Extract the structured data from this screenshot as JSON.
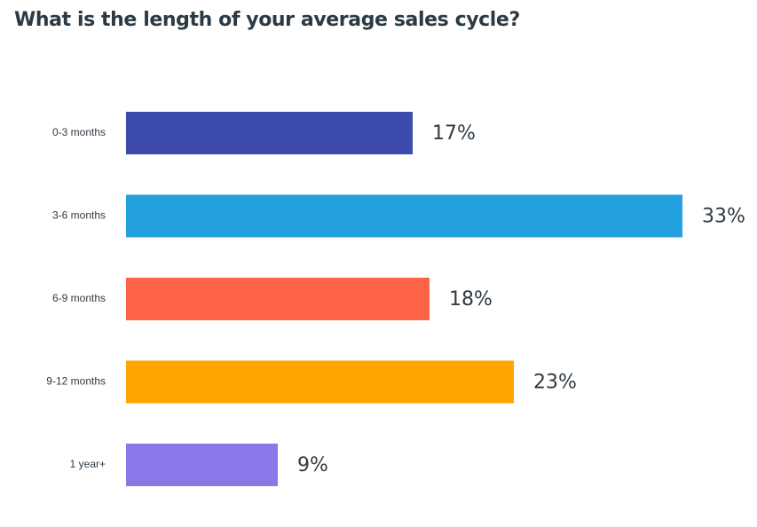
{
  "chart_data": {
    "type": "bar",
    "orientation": "horizontal",
    "title": "What is the length of your average sales cycle?",
    "categories": [
      "0-3 months",
      "3-6 months",
      "6-9 months",
      "9-12 months",
      "1 year+"
    ],
    "values": [
      17,
      33,
      18,
      23,
      9
    ],
    "value_labels": [
      "17%",
      "33%",
      "18%",
      "23%",
      "9%"
    ],
    "colors": [
      "#3d4bad",
      "#23a0de",
      "#ff6347",
      "#ffa500",
      "#8a78e8"
    ],
    "unit": "%",
    "xlim": [
      0,
      33
    ],
    "grid": false,
    "legend": "none"
  }
}
